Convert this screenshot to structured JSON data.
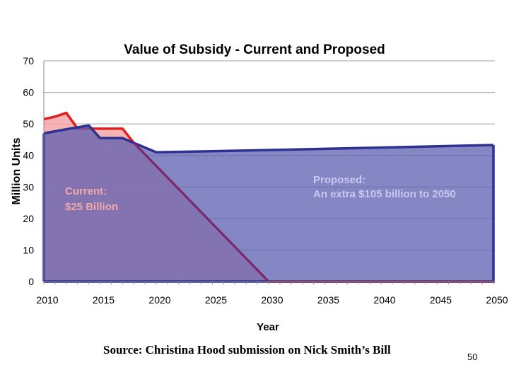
{
  "chart_data": {
    "type": "area",
    "title": "Value of Subsidy - Current and Proposed",
    "xlabel": "Year",
    "ylabel": "Million Units",
    "xlim": [
      2010,
      2050
    ],
    "ylim": [
      0,
      70
    ],
    "xticks": [
      2010,
      2015,
      2020,
      2025,
      2030,
      2035,
      2040,
      2045,
      2050
    ],
    "yticks": [
      0,
      10,
      20,
      30,
      40,
      50,
      60,
      70
    ],
    "grid": true,
    "series": [
      {
        "key": "current",
        "color": "#e02020",
        "fill": "#f4a6a6",
        "x": [
          2010,
          2011,
          2012,
          2013,
          2014,
          2015,
          2016,
          2017,
          2018,
          2030,
          2050
        ],
        "y": [
          51.5,
          52.3,
          53.5,
          48.5,
          48.5,
          48.5,
          48.5,
          48.5,
          44,
          0,
          0
        ]
      },
      {
        "key": "proposed",
        "color": "#2e3192",
        "fill": "#5c5fb0",
        "x": [
          2010,
          2012,
          2014,
          2015,
          2017,
          2020,
          2030,
          2040,
          2050
        ],
        "y": [
          47,
          48.3,
          49.5,
          45.5,
          45.5,
          41,
          41.7,
          42.5,
          43.3
        ]
      }
    ],
    "annotations": [
      {
        "key": "current",
        "lines": [
          "Current:",
          "$25 Billion"
        ]
      },
      {
        "key": "proposed",
        "lines": [
          "Proposed:",
          "An extra $105 billion to 2050"
        ]
      }
    ]
  },
  "footer": {
    "source": "Source: Christina Hood submission on Nick Smith’s Bill",
    "page_number": "50"
  }
}
